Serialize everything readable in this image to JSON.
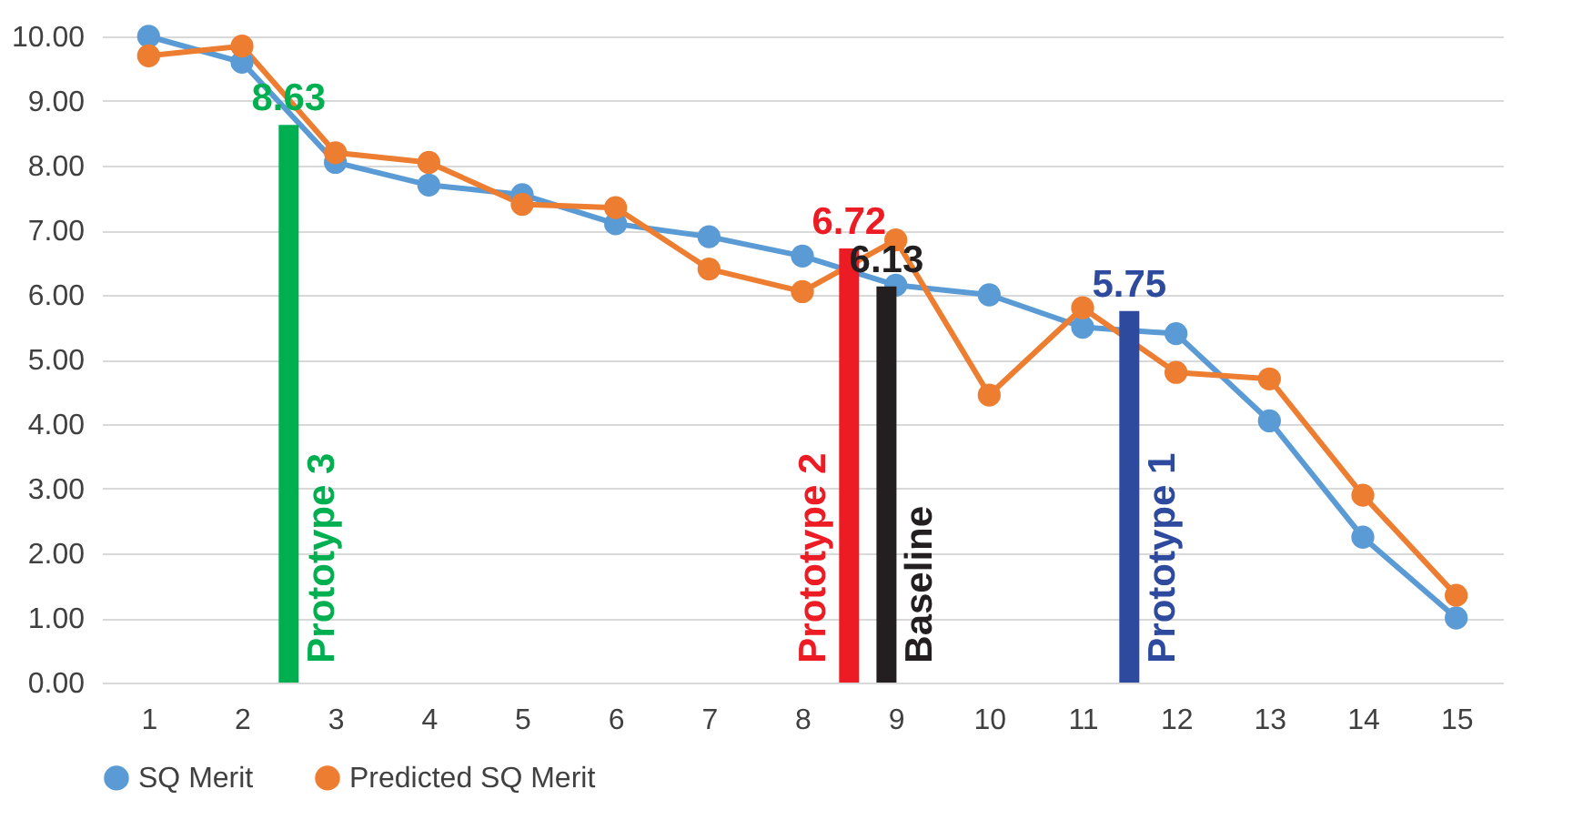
{
  "chart_data": {
    "type": "line",
    "x": [
      1,
      2,
      3,
      4,
      5,
      6,
      7,
      8,
      9,
      10,
      11,
      12,
      13,
      14,
      15
    ],
    "xlim": [
      0.5,
      15.5
    ],
    "xticks": [
      1,
      2,
      3,
      4,
      5,
      6,
      7,
      8,
      9,
      10,
      11,
      12,
      13,
      14,
      15
    ],
    "ylim": [
      0,
      10
    ],
    "yticks": [
      {
        "value": 0,
        "label": "0.00"
      },
      {
        "value": 1,
        "label": "1.00"
      },
      {
        "value": 2,
        "label": "2.00"
      },
      {
        "value": 3,
        "label": "3.00"
      },
      {
        "value": 4,
        "label": "4.00"
      },
      {
        "value": 5,
        "label": "5.00"
      },
      {
        "value": 6,
        "label": "6.00"
      },
      {
        "value": 7,
        "label": "7.00"
      },
      {
        "value": 8,
        "label": "8.00"
      },
      {
        "value": 9,
        "label": "9.00"
      },
      {
        "value": 10,
        "label": "10.00"
      }
    ],
    "grid": "y",
    "legend": "bottom",
    "marker": "circle",
    "line_style": "solid",
    "series": [
      {
        "name": "SQ Merit",
        "color": "#5b9bd5",
        "values": [
          10.0,
          9.6,
          8.05,
          7.7,
          7.55,
          7.1,
          6.9,
          6.6,
          6.15,
          6.0,
          5.5,
          5.4,
          4.05,
          2.25,
          1.0
        ]
      },
      {
        "name": "Predicted SQ Merit",
        "color": "#ed7d31",
        "values": [
          9.7,
          9.85,
          8.2,
          8.05,
          7.4,
          7.35,
          6.4,
          6.05,
          6.85,
          4.45,
          5.8,
          4.8,
          4.7,
          2.9,
          1.35
        ]
      },
      {
        "name": "Prototype 3",
        "type": "bar",
        "color": "#00b050",
        "x": [
          2.5
        ],
        "values": [
          8.63
        ],
        "value_labels": [
          "8.63"
        ]
      },
      {
        "name": "Prototype 2",
        "type": "bar",
        "color": "#ed1c24",
        "x": [
          8.5
        ],
        "values": [
          6.72
        ],
        "value_labels": [
          "6.72"
        ]
      },
      {
        "name": "Baseline",
        "type": "bar",
        "color": "#231f20",
        "x": [
          8.9
        ],
        "values": [
          6.13
        ],
        "value_labels": [
          "6.13"
        ]
      },
      {
        "name": "Prototype 1",
        "type": "bar",
        "color": "#2e4a9e",
        "x": [
          11.5
        ],
        "values": [
          5.75
        ],
        "value_labels": [
          "5.75"
        ]
      }
    ]
  }
}
